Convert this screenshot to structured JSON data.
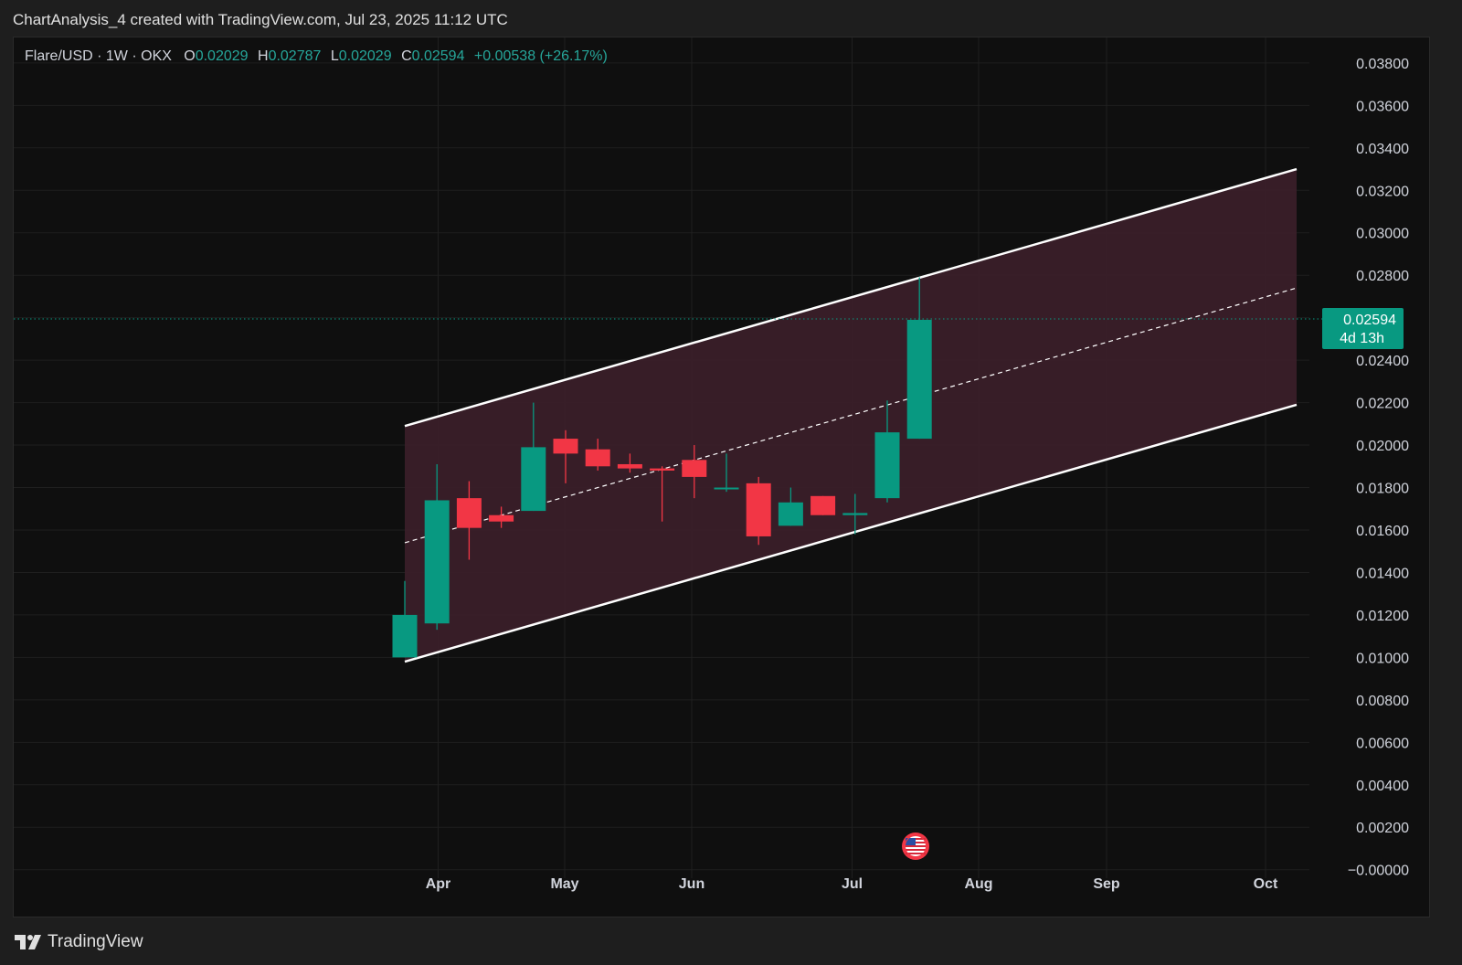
{
  "caption": "ChartAnalysis_4 created with TradingView.com, Jul 23, 2025 11:12 UTC",
  "legend": {
    "symbol": "Flare/USD · 1W · OKX",
    "open_label": "O",
    "open": "0.02029",
    "high_label": "H",
    "high": "0.02787",
    "low_label": "L",
    "low": "0.02029",
    "close_label": "C",
    "close": "0.02594",
    "change": "+0.00538 (+26.17%)"
  },
  "price_tag": {
    "price": "0.02594",
    "countdown": "4d 13h",
    "value": 0.02594
  },
  "brand": {
    "name": "TradingView",
    "icon": "tradingview-logo-icon"
  },
  "event_marker": {
    "icon": "us-flag-icon"
  },
  "colors": {
    "up": "#089981",
    "down": "#f23645",
    "channel_fill": "#3a1f29",
    "channel_line": "#ffffff",
    "background": "#0f0f0f",
    "axis_text": "#d1d4dc"
  },
  "chart_data": {
    "type": "candlestick",
    "timeframe": "1W",
    "xlabels": [
      "Apr",
      "May",
      "Jun",
      "Jul",
      "Aug",
      "Sep",
      "Oct"
    ],
    "y_ticks": [
      "0.03800",
      "0.03600",
      "0.03400",
      "0.03200",
      "0.03000",
      "0.02800",
      "0.02400",
      "0.02200",
      "0.02000",
      "0.01800",
      "0.01600",
      "0.01400",
      "0.01200",
      "0.01000",
      "0.00800",
      "0.00600",
      "0.00400",
      "0.00200",
      "−0.00000"
    ],
    "y_tick_values": [
      0.038,
      0.036,
      0.034,
      0.032,
      0.03,
      0.028,
      0.024,
      0.022,
      0.02,
      0.018,
      0.016,
      0.014,
      0.012,
      0.01,
      0.008,
      0.006,
      0.004,
      0.002,
      0.0
    ],
    "ylim": [
      -0.0004,
      0.0392
    ],
    "grid": true,
    "candles": [
      {
        "open": 0.01,
        "high": 0.0136,
        "low": 0.01,
        "close": 0.012
      },
      {
        "open": 0.0116,
        "high": 0.0191,
        "low": 0.0113,
        "close": 0.0174
      },
      {
        "open": 0.0175,
        "high": 0.0183,
        "low": 0.0146,
        "close": 0.0161
      },
      {
        "open": 0.0167,
        "high": 0.0171,
        "low": 0.0161,
        "close": 0.0164
      },
      {
        "open": 0.0169,
        "high": 0.022,
        "low": 0.0169,
        "close": 0.0199
      },
      {
        "open": 0.0203,
        "high": 0.0207,
        "low": 0.0182,
        "close": 0.0196
      },
      {
        "open": 0.0198,
        "high": 0.0203,
        "low": 0.0188,
        "close": 0.019
      },
      {
        "open": 0.0191,
        "high": 0.0196,
        "low": 0.0187,
        "close": 0.0189
      },
      {
        "open": 0.0189,
        "high": 0.019,
        "low": 0.0164,
        "close": 0.0188
      },
      {
        "open": 0.0193,
        "high": 0.02,
        "low": 0.0175,
        "close": 0.0185
      },
      {
        "open": 0.018,
        "high": 0.0196,
        "low": 0.0178,
        "close": 0.018
      },
      {
        "open": 0.0182,
        "high": 0.0185,
        "low": 0.0153,
        "close": 0.0157
      },
      {
        "open": 0.0162,
        "high": 0.018,
        "low": 0.0162,
        "close": 0.0173
      },
      {
        "open": 0.0176,
        "high": 0.0176,
        "low": 0.0167,
        "close": 0.0167
      },
      {
        "open": 0.0167,
        "high": 0.0177,
        "low": 0.0158,
        "close": 0.0168
      },
      {
        "open": 0.0175,
        "high": 0.0221,
        "low": 0.0173,
        "close": 0.0206
      },
      {
        "open": 0.0203,
        "high": 0.0279,
        "low": 0.0203,
        "close": 0.0259
      }
    ],
    "channel": {
      "upper": [
        0.0209,
        0.033
      ],
      "middle": [
        0.0154,
        0.0274
      ],
      "lower": [
        0.0098,
        0.0219
      ]
    }
  }
}
